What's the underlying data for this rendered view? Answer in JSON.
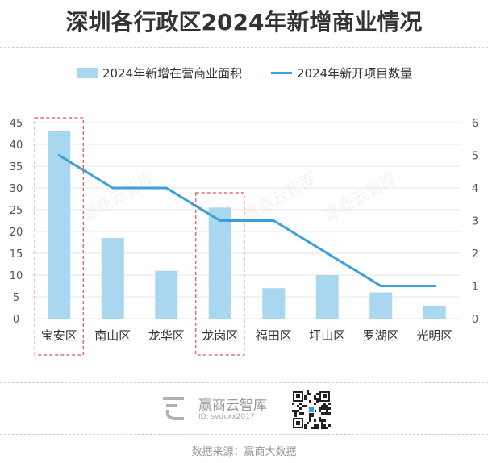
{
  "title": "深圳各行政区2024年新增商业情况",
  "legend": {
    "bar_label": "2024年新增在营商业面积",
    "line_label": "2024年新开项目数量"
  },
  "colors": {
    "bar": "#a9d7ef",
    "line": "#3b9fdc",
    "highlight_box": "#e05050",
    "grid": "#e6e6e6",
    "axis_text": "#555555"
  },
  "chart_data": {
    "type": "bar",
    "categories": [
      "宝安区",
      "南山区",
      "龙华区",
      "龙岗区",
      "福田区",
      "坪山区",
      "罗湖区",
      "光明区"
    ],
    "series": [
      {
        "name": "2024年新增在营商业面积",
        "type": "bar",
        "axis": "left",
        "values": [
          43,
          18.5,
          11,
          25.5,
          7,
          10,
          6,
          3
        ]
      },
      {
        "name": "2024年新开项目数量",
        "type": "line",
        "axis": "right",
        "values": [
          5,
          4,
          4,
          3,
          3,
          2,
          1,
          1
        ]
      }
    ],
    "ylim_left": [
      0,
      45
    ],
    "yticks_left": [
      0,
      5,
      10,
      15,
      20,
      25,
      30,
      35,
      40,
      45
    ],
    "ylim_right": [
      0,
      6
    ],
    "yticks_right": [
      0,
      1,
      2,
      3,
      4,
      5,
      6
    ],
    "highlighted_categories": [
      "宝安区",
      "龙岗区"
    ],
    "grid": true,
    "legend_position": "top"
  },
  "watermark": "赢商云智库",
  "footer": {
    "brand_name": "赢商云智库",
    "brand_id": "ID: svdcxx2017",
    "qr_icon": "qr-code-icon",
    "source": "数据来源：赢商大数据"
  }
}
